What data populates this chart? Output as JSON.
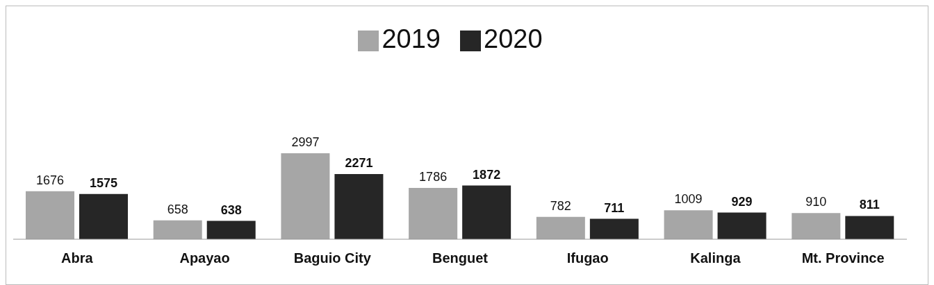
{
  "chart_data": {
    "type": "bar",
    "categories": [
      "Abra",
      "Apayao",
      "Baguio City",
      "Benguet",
      "Ifugao",
      "Kalinga",
      "Mt. Province"
    ],
    "series": [
      {
        "name": "2019",
        "color": "#a6a6a6",
        "values": [
          1676,
          658,
          2997,
          1786,
          782,
          1009,
          910
        ]
      },
      {
        "name": "2020",
        "color": "#262626",
        "values": [
          1575,
          638,
          2271,
          1872,
          711,
          929,
          811
        ]
      }
    ],
    "data_labels": true,
    "legend": "top",
    "grid": false
  }
}
